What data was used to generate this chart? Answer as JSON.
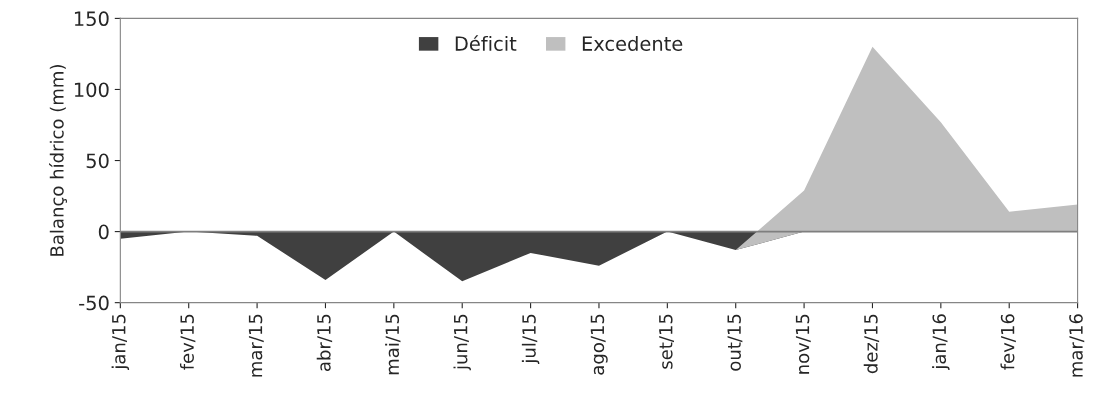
{
  "chart_data": {
    "type": "area",
    "ylabel": "Balanço hídrico (mm)",
    "categories": [
      "jan/15",
      "fev/15",
      "mar/15",
      "abr/15",
      "mai/15",
      "jun/15",
      "jul/15",
      "ago/15",
      "set/15",
      "out/15",
      "nov/15",
      "dez/15",
      "jan/16",
      "fev/16",
      "mar/16"
    ],
    "series": [
      {
        "name": "Déficit",
        "color": "#404040",
        "values": [
          -5,
          0,
          -3,
          -34,
          0,
          -35,
          -15,
          -24,
          0,
          -13,
          0,
          0,
          0,
          0,
          0
        ]
      },
      {
        "name": "Excedente",
        "color": "#bfbfbf",
        "values": [
          0,
          0,
          0,
          0,
          0,
          0,
          0,
          0,
          0,
          0,
          29,
          130,
          77,
          14,
          19
        ]
      }
    ],
    "stacked": true,
    "ylim": [
      -50,
      150
    ],
    "yticks": [
      -50,
      0,
      50,
      100,
      150
    ],
    "legend": "top",
    "ref_lines": [
      {
        "axis": "y",
        "value": 0,
        "color": "#7f7f7f"
      }
    ]
  }
}
